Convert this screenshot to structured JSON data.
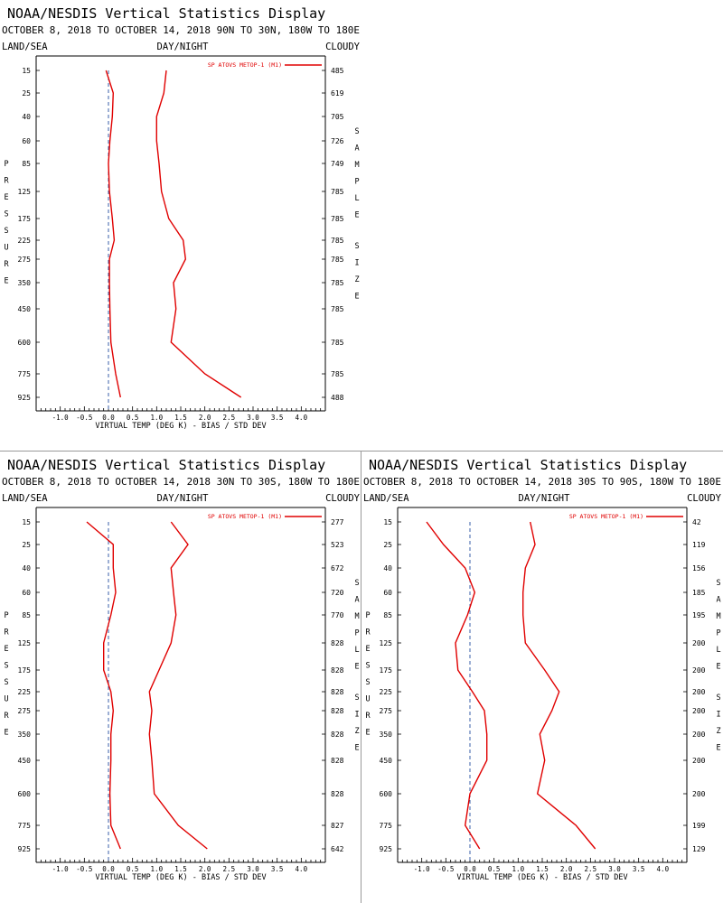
{
  "chart_data": [
    {
      "type": "line",
      "title": "NOAA/NESDIS Vertical Statistics Display",
      "subtitle": "OCTOBER 8, 2018 TO OCTOBER 14, 2018 90N TO 30N, 180W TO 180E",
      "header_left": "LAND/SEA",
      "header_center": "DAY/NIGHT",
      "header_right": "CLOUDY",
      "xlabel": "VIRTUAL TEMP (DEG K) - BIAS / STD DEV",
      "ylabel": "PRESSURE",
      "y2label": "SAMPLE SIZE",
      "xlim": [
        -1.5,
        4.5
      ],
      "xticks": [
        "-1.0",
        "-0.5",
        "0.0",
        "0.5",
        "1.0",
        "1.5",
        "2.0",
        "2.5",
        "3.0",
        "3.5",
        "4.0"
      ],
      "legend": "SP ATOVS METOP-1 (M1)",
      "legend_position": "top-right",
      "levels": [
        "15",
        "25",
        "40",
        "60",
        "85",
        "125",
        "175",
        "225",
        "275",
        "350",
        "450",
        "600",
        "775",
        "925"
      ],
      "sample_size": [
        "485",
        "619",
        "705",
        "726",
        "749",
        "785",
        "785",
        "785",
        "785",
        "785",
        "785",
        "785",
        "785",
        "488"
      ],
      "series": [
        {
          "role": "bias",
          "values": [
            -0.05,
            0.1,
            0.08,
            0.03,
            0.0,
            0.02,
            0.08,
            0.12,
            0.02,
            0.02,
            0.03,
            0.05,
            0.15,
            0.25
          ]
        },
        {
          "role": "std_dev",
          "values": [
            1.2,
            1.15,
            1.0,
            1.0,
            1.05,
            1.1,
            1.25,
            1.55,
            1.6,
            1.35,
            1.4,
            1.3,
            2.0,
            2.75
          ]
        }
      ]
    },
    {
      "type": "line",
      "title": "NOAA/NESDIS Vertical Statistics Display",
      "subtitle": "OCTOBER 8, 2018 TO OCTOBER 14, 2018 30N TO 30S, 180W TO 180E",
      "header_left": "LAND/SEA",
      "header_center": "DAY/NIGHT",
      "header_right": "CLOUDY",
      "xlabel": "VIRTUAL TEMP (DEG K) - BIAS / STD DEV",
      "ylabel": "PRESSURE",
      "y2label": "SAMPLE SIZE",
      "xlim": [
        -1.5,
        4.5
      ],
      "xticks": [
        "-1.0",
        "-0.5",
        "0.0",
        "0.5",
        "1.0",
        "1.5",
        "2.0",
        "2.5",
        "3.0",
        "3.5",
        "4.0"
      ],
      "legend": "SP ATOVS METOP-1 (M1)",
      "legend_position": "top-right",
      "levels": [
        "15",
        "25",
        "40",
        "60",
        "85",
        "125",
        "175",
        "225",
        "275",
        "350",
        "450",
        "600",
        "775",
        "925"
      ],
      "sample_size": [
        "277",
        "523",
        "672",
        "720",
        "770",
        "828",
        "828",
        "828",
        "828",
        "828",
        "828",
        "828",
        "827",
        "642"
      ],
      "series": [
        {
          "role": "bias",
          "values": [
            -0.45,
            0.1,
            0.1,
            0.15,
            0.05,
            -0.1,
            -0.1,
            0.05,
            0.1,
            0.05,
            0.05,
            0.03,
            0.05,
            0.25
          ]
        },
        {
          "role": "std_dev",
          "values": [
            1.3,
            1.65,
            1.3,
            1.35,
            1.4,
            1.3,
            1.05,
            0.85,
            0.9,
            0.85,
            0.9,
            0.95,
            1.45,
            2.05
          ]
        }
      ]
    },
    {
      "type": "line",
      "title": "NOAA/NESDIS Vertical Statistics Display",
      "subtitle": "OCTOBER 8, 2018 TO OCTOBER 14, 2018 30S TO 90S, 180W TO 180E",
      "header_left": "LAND/SEA",
      "header_center": "DAY/NIGHT",
      "header_right": "CLOUDY",
      "xlabel": "VIRTUAL TEMP (DEG K) - BIAS / STD DEV",
      "ylabel": "PRESSURE",
      "y2label": "SAMPLE SIZE",
      "xlim": [
        -1.5,
        4.5
      ],
      "xticks": [
        "-1.0",
        "-0.5",
        "0.0",
        "0.5",
        "1.0",
        "1.5",
        "2.0",
        "2.5",
        "3.0",
        "3.5",
        "4.0"
      ],
      "legend": "SP ATOVS METOP-1 (M1)",
      "legend_position": "top-right",
      "levels": [
        "15",
        "25",
        "40",
        "60",
        "85",
        "125",
        "175",
        "225",
        "275",
        "350",
        "450",
        "600",
        "775",
        "925"
      ],
      "sample_size": [
        "42",
        "119",
        "156",
        "185",
        "195",
        "200",
        "200",
        "200",
        "200",
        "200",
        "200",
        "200",
        "199",
        "129"
      ],
      "series": [
        {
          "role": "bias",
          "values": [
            -0.9,
            -0.55,
            -0.1,
            0.1,
            -0.05,
            -0.3,
            -0.25,
            0.05,
            0.3,
            0.35,
            0.35,
            0.0,
            -0.1,
            0.2
          ]
        },
        {
          "role": "std_dev",
          "values": [
            1.25,
            1.35,
            1.15,
            1.1,
            1.1,
            1.15,
            1.55,
            1.85,
            1.7,
            1.45,
            1.55,
            1.4,
            2.2,
            2.6
          ]
        }
      ]
    }
  ],
  "colors": {
    "series": "#e00000",
    "zero_line": "#3a5fa8",
    "axis": "#000000",
    "separator": "#999999"
  }
}
